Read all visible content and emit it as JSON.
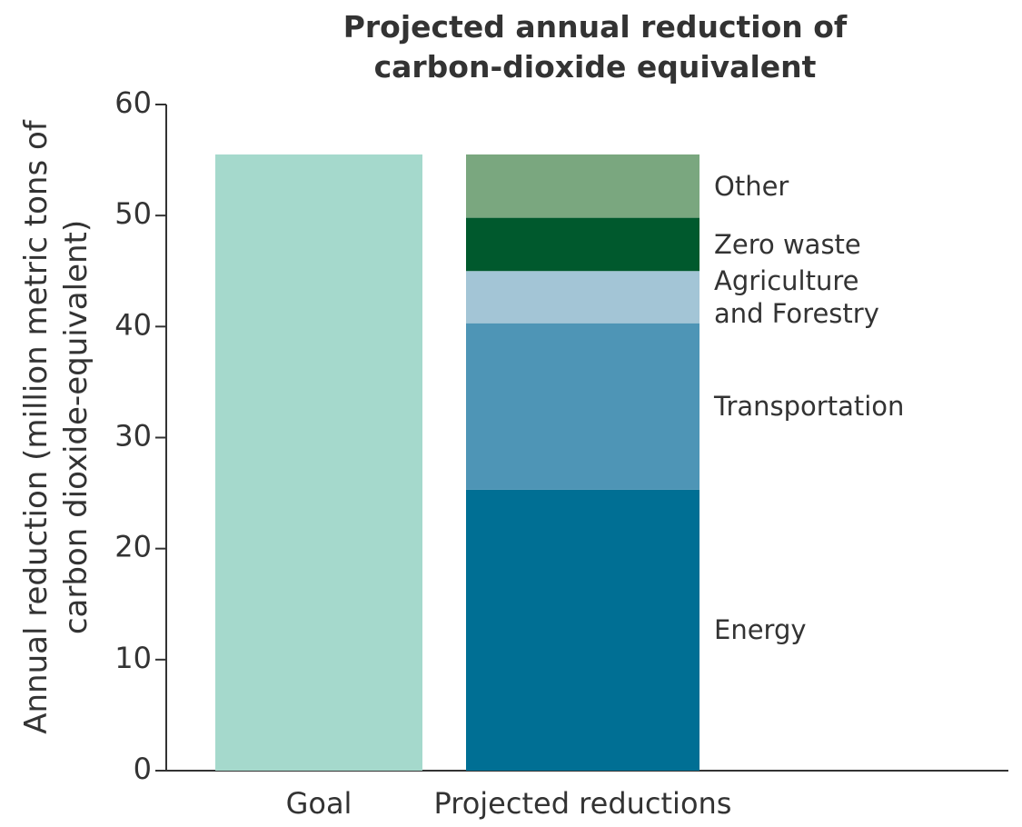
{
  "chart_data": {
    "type": "stacked_bar",
    "title": "Projected annual reduction of carbon-dioxide equivalent",
    "y_label": "Annual reduction (million metric tons of carbon dioxide-equivalent)",
    "categories": [
      "Goal",
      "Projected reductions"
    ],
    "series": [
      {
        "color": "#a5d9cc",
        "values": [
          55.5,
          null
        ]
      },
      {
        "name": "Energy",
        "color": "#006f94",
        "values": [
          null,
          25.3
        ]
      },
      {
        "name": "Transportation",
        "color": "#4e95b6",
        "values": [
          null,
          15
        ]
      },
      {
        "name": "Agriculture and Forestry",
        "color": "#a3c5d6",
        "values": [
          null,
          4.7
        ]
      },
      {
        "name": "Zero waste",
        "color": "#00592d",
        "values": [
          null,
          4.8
        ]
      },
      {
        "name": "Other",
        "color": "#7aa77f",
        "values": [
          null,
          5.7
        ]
      }
    ],
    "ylim": [
      0,
      60
    ],
    "yticks": [
      0,
      10,
      20,
      30,
      40,
      50,
      60
    ]
  }
}
